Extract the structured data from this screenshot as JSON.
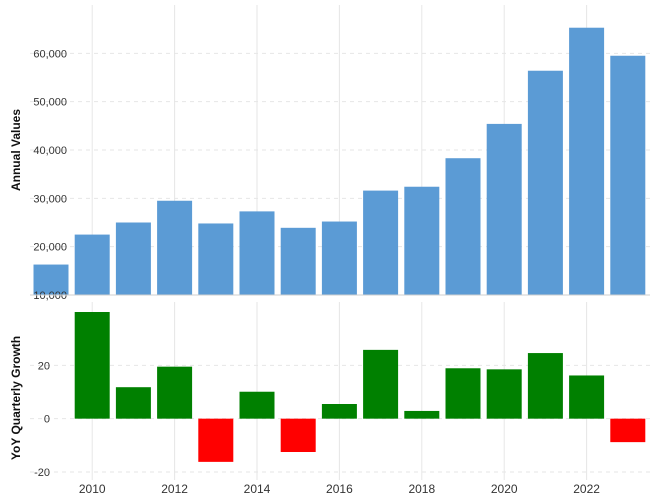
{
  "chart_data": [
    {
      "type": "bar",
      "ylabel": "Annual Values",
      "x": [
        2009,
        2010,
        2011,
        2012,
        2013,
        2014,
        2015,
        2016,
        2017,
        2018,
        2019,
        2020,
        2021,
        2022,
        2023
      ],
      "values": [
        16300,
        22500,
        25000,
        29500,
        24800,
        27300,
        23900,
        25200,
        31600,
        32400,
        38300,
        45400,
        56400,
        65300,
        59500
      ],
      "ylim": [
        10000,
        70000
      ],
      "yticks": [
        10000,
        20000,
        30000,
        40000,
        50000,
        60000
      ],
      "ytick_labels": [
        "10,000",
        "20,000",
        "30,000",
        "40,000",
        "50,000",
        "60,000"
      ],
      "color": "#5b9bd5",
      "grid": true
    },
    {
      "type": "bar",
      "ylabel": "YoY Quarterly Growth",
      "x": [
        2010,
        2011,
        2012,
        2013,
        2014,
        2015,
        2016,
        2017,
        2018,
        2019,
        2020,
        2021,
        2022,
        2023
      ],
      "values": [
        40.0,
        11.8,
        19.5,
        -16.2,
        10.1,
        -12.5,
        5.5,
        25.8,
        2.9,
        18.9,
        18.5,
        24.6,
        16.2,
        -8.8
      ],
      "ylim": [
        -20,
        40
      ],
      "yticks": [
        -20,
        0,
        20
      ],
      "ytick_labels": [
        "-20",
        "0",
        "20"
      ],
      "positive_color": "#008000",
      "negative_color": "#ff0000",
      "grid": true
    }
  ],
  "x_axis": {
    "ticks": [
      2010,
      2012,
      2014,
      2016,
      2018,
      2020,
      2022
    ],
    "tick_labels": [
      "2010",
      "2012",
      "2014",
      "2016",
      "2018",
      "2020",
      "2022"
    ]
  }
}
